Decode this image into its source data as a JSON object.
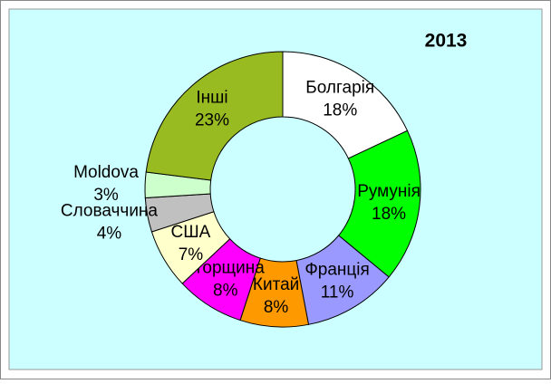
{
  "chart_data": {
    "type": "pie",
    "title": "2013",
    "categories": [
      "Болгарія",
      "Румунія",
      "Франція",
      "Китай",
      "Угорщина",
      "США",
      "Словаччина",
      "Moldova",
      "Інші"
    ],
    "values": [
      18,
      18,
      11,
      8,
      8,
      7,
      4,
      3,
      23
    ],
    "value_labels": [
      "18%",
      "18%",
      "11%",
      "8%",
      "8%",
      "7%",
      "4%",
      "3%",
      "23%"
    ],
    "colors": [
      "#ffffff",
      "#00ff00",
      "#9999ff",
      "#ff9900",
      "#ff00ff",
      "#ffffcc",
      "#c0c0c0",
      "#ccffcc",
      "#99bb22"
    ]
  }
}
